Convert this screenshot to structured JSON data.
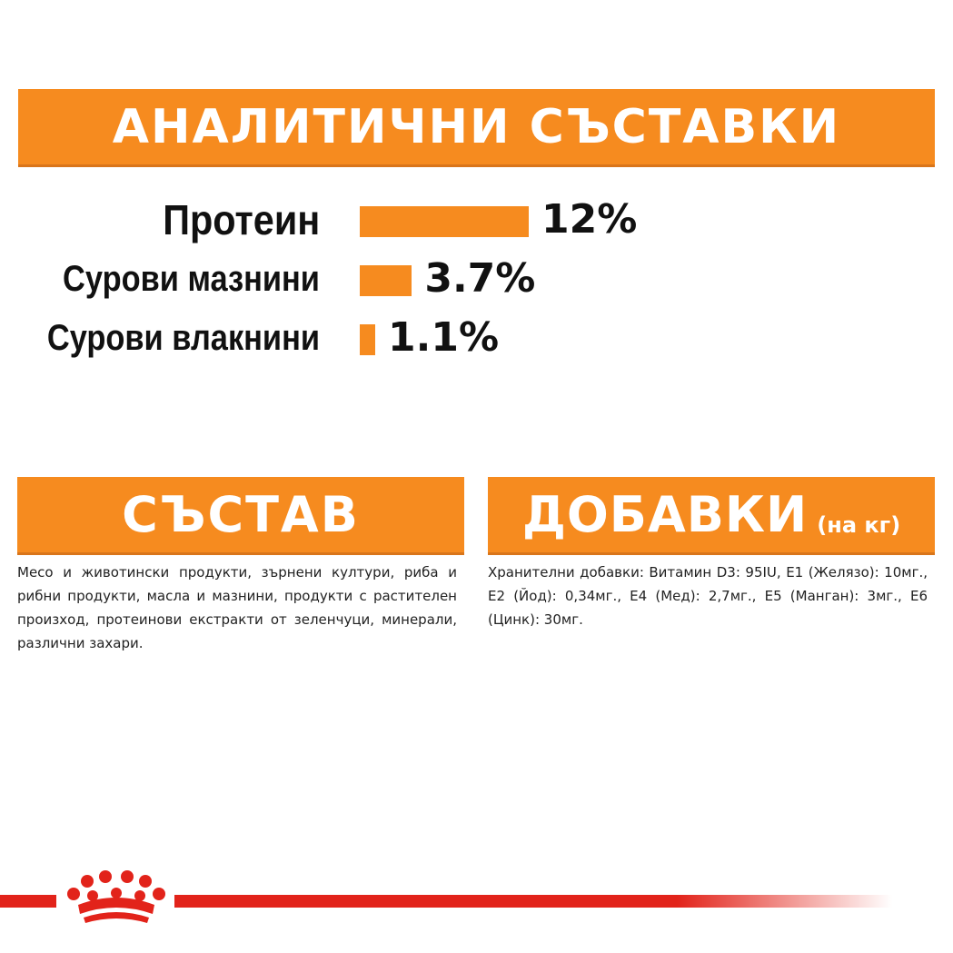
{
  "analytical": {
    "title": "АНАЛИТИЧНИ СЪСТАВКИ",
    "rows": [
      {
        "label": "Протеин",
        "value": "12%",
        "percent": 12
      },
      {
        "label": "Сурови мазнини",
        "value": "3.7%",
        "percent": 3.7
      },
      {
        "label": "Сурови влакнини",
        "value": "1.1%",
        "percent": 1.1
      }
    ]
  },
  "composition": {
    "title": "СЪСТАВ",
    "text": "Месо и животински продукти, зърнени култури, риба и рибни продукти, масла и мазнини, продукти с растителен произход, протеинови екстракти от зеленчуци, минерали, различни захари."
  },
  "additives": {
    "title": "ДОБАВКИ",
    "subtitle": "(на кг)",
    "text": "Хранителни добавки: Витамин D3: 95IU, E1 (Желязо): 10мг., E2 (Йод): 0,34мг., E4 (Мед): 2,7мг., E5 (Манган): 3мг., E6 (Цинк): 30мг."
  },
  "colors": {
    "accent": "#f68b1f",
    "brand_red": "#e2231a",
    "text": "#111111"
  },
  "footer": {
    "logo": "crown-icon"
  }
}
